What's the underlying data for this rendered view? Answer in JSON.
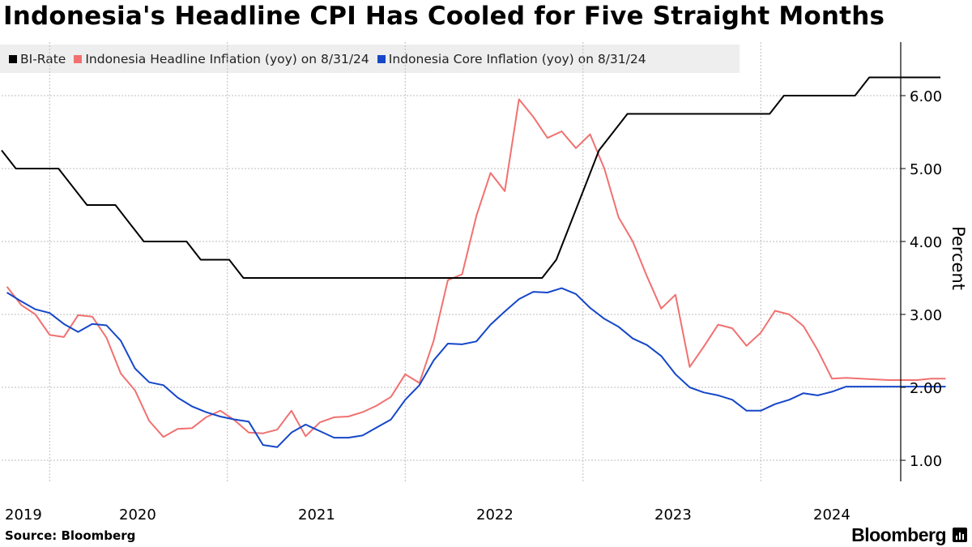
{
  "title": "Indonesia's Headline CPI Has Cooled for Five Straight Months",
  "source": "Source: Bloomberg",
  "brand": "Bloomberg",
  "colors": {
    "bi_rate": "#000000",
    "headline": "#f07170",
    "core": "#1547c8",
    "grid": "#bdbdbd"
  },
  "chart_data": {
    "type": "line",
    "ylabel": "Percent",
    "ylim": [
      0.7,
      6.75
    ],
    "y_ticks": [
      1.0,
      2.0,
      3.0,
      4.0,
      5.0,
      6.0
    ],
    "y_tick_labels": [
      "1.00",
      "2.00",
      "3.00",
      "4.00",
      "5.00",
      "6.00"
    ],
    "x_tick_labels": [
      "2019",
      "2020",
      "2021",
      "2022",
      "2023",
      "2024"
    ],
    "x_label_positions": [
      2019.0,
      2020.0,
      2021.0,
      2022.0,
      2023.0,
      2024.0
    ],
    "x_range": [
      2019.1,
      2024.4
    ],
    "grid": "dotted horizontal; vertical at year boundaries",
    "legend_position": "top-left",
    "series": [
      {
        "name": "BI-Rate",
        "key": "bi_rate",
        "x": [
          2019.1,
          2019.18,
          2019.26,
          2019.34,
          2019.42,
          2019.5,
          2019.58,
          2019.66,
          2019.74,
          2019.82,
          2019.9,
          2019.98,
          2020.06,
          2020.14,
          2020.22,
          2020.3,
          2020.38,
          2020.46,
          2020.54,
          2020.62,
          2020.7,
          2020.78,
          2020.86,
          2020.94,
          2021.02,
          2021.1,
          2021.18,
          2021.26,
          2021.34,
          2021.42,
          2021.5,
          2021.58,
          2021.66,
          2021.74,
          2021.82,
          2021.9,
          2021.98,
          2022.06,
          2022.14,
          2022.22,
          2022.3,
          2022.38,
          2022.46,
          2022.54,
          2022.62,
          2022.7,
          2022.78,
          2022.86,
          2022.94,
          2023.02,
          2023.1,
          2023.18,
          2023.26,
          2023.34,
          2023.42,
          2023.5,
          2023.58,
          2023.66,
          2023.74,
          2023.82,
          2023.9,
          2023.98,
          2024.06,
          2024.14,
          2024.22,
          2024.3,
          2024.38
        ],
        "values": [
          5.25,
          5.0,
          5.0,
          5.0,
          5.0,
          4.75,
          4.5,
          4.5,
          4.5,
          4.25,
          4.0,
          4.0,
          4.0,
          4.0,
          3.75,
          3.75,
          3.75,
          3.5,
          3.5,
          3.5,
          3.5,
          3.5,
          3.5,
          3.5,
          3.5,
          3.5,
          3.5,
          3.5,
          3.5,
          3.5,
          3.5,
          3.5,
          3.5,
          3.5,
          3.5,
          3.5,
          3.5,
          3.5,
          3.5,
          3.75,
          4.25,
          4.75,
          5.25,
          5.5,
          5.75,
          5.75,
          5.75,
          5.75,
          5.75,
          5.75,
          5.75,
          5.75,
          5.75,
          5.75,
          5.75,
          6.0,
          6.0,
          6.0,
          6.0,
          6.0,
          6.0,
          6.25,
          6.25,
          6.25,
          6.25,
          6.25,
          6.25
        ]
      },
      {
        "name": "Indonesia Headline Inflation (yoy) on 8/31/24",
        "key": "headline",
        "x": [
          2019.13,
          2019.21,
          2019.29,
          2019.37,
          2019.45,
          2019.53,
          2019.61,
          2019.69,
          2019.77,
          2019.85,
          2019.93,
          2020.01,
          2020.09,
          2020.17,
          2020.25,
          2020.33,
          2020.41,
          2020.49,
          2020.57,
          2020.65,
          2020.73,
          2020.81,
          2020.89,
          2020.97,
          2021.05,
          2021.13,
          2021.21,
          2021.29,
          2021.37,
          2021.45,
          2021.53,
          2021.61,
          2021.69,
          2021.77,
          2021.85,
          2021.93,
          2022.01,
          2022.09,
          2022.17,
          2022.25,
          2022.33,
          2022.41,
          2022.49,
          2022.57,
          2022.65,
          2022.73,
          2022.81,
          2022.89,
          2022.97,
          2023.05,
          2023.13,
          2023.21,
          2023.29,
          2023.37,
          2023.45,
          2023.53,
          2023.61,
          2023.69,
          2023.77,
          2023.85,
          2023.93,
          2024.01,
          2024.09,
          2024.17,
          2024.25,
          2024.33,
          2024.41
        ],
        "values": [
          3.38,
          3.13,
          3.0,
          2.72,
          2.69,
          2.99,
          2.97,
          2.68,
          2.19,
          1.96,
          1.54,
          1.32,
          1.43,
          1.44,
          1.59,
          1.68,
          1.55,
          1.38,
          1.37,
          1.42,
          1.68,
          1.33,
          1.52,
          1.59,
          1.6,
          1.66,
          1.75,
          1.87,
          2.18,
          2.06,
          2.64,
          3.47,
          3.55,
          4.35,
          4.94,
          4.69,
          5.95,
          5.71,
          5.42,
          5.51,
          5.28,
          5.47,
          5.0,
          4.33,
          4.0,
          3.52,
          3.08,
          3.27,
          2.28,
          2.56,
          2.86,
          2.81,
          2.57,
          2.75,
          3.05,
          3.0,
          2.84,
          2.51,
          2.12,
          2.13,
          2.12,
          2.11,
          2.1,
          2.1,
          2.1,
          2.12,
          2.12
        ]
      },
      {
        "name": "Indonesia Core Inflation (yoy) on 8/31/24",
        "key": "core",
        "x": [
          2019.13,
          2019.21,
          2019.29,
          2019.37,
          2019.45,
          2019.53,
          2019.61,
          2019.69,
          2019.77,
          2019.85,
          2019.93,
          2020.01,
          2020.09,
          2020.17,
          2020.25,
          2020.33,
          2020.41,
          2020.49,
          2020.57,
          2020.65,
          2020.73,
          2020.81,
          2020.89,
          2020.97,
          2021.05,
          2021.13,
          2021.21,
          2021.29,
          2021.37,
          2021.45,
          2021.53,
          2021.61,
          2021.69,
          2021.77,
          2021.85,
          2021.93,
          2022.01,
          2022.09,
          2022.17,
          2022.25,
          2022.33,
          2022.41,
          2022.49,
          2022.57,
          2022.65,
          2022.73,
          2022.81,
          2022.89,
          2022.97,
          2023.05,
          2023.13,
          2023.21,
          2023.29,
          2023.37,
          2023.45,
          2023.53,
          2023.61,
          2023.69,
          2023.77,
          2023.85,
          2023.93,
          2024.01,
          2024.09,
          2024.17,
          2024.25,
          2024.33,
          2024.41
        ],
        "values": [
          3.3,
          3.18,
          3.07,
          3.02,
          2.87,
          2.76,
          2.87,
          2.85,
          2.64,
          2.26,
          2.07,
          2.03,
          1.86,
          1.74,
          1.66,
          1.6,
          1.56,
          1.53,
          1.21,
          1.18,
          1.38,
          1.49,
          1.4,
          1.31,
          1.31,
          1.34,
          1.45,
          1.56,
          1.83,
          2.03,
          2.37,
          2.6,
          2.59,
          2.63,
          2.86,
          3.04,
          3.21,
          3.31,
          3.3,
          3.36,
          3.28,
          3.09,
          2.94,
          2.83,
          2.67,
          2.58,
          2.43,
          2.18,
          2.0,
          1.93,
          1.89,
          1.83,
          1.68,
          1.68,
          1.77,
          1.83,
          1.92,
          1.89,
          1.94,
          2.01,
          2.01,
          2.01,
          2.01,
          2.01,
          2.01,
          2.01,
          2.01
        ]
      }
    ]
  }
}
